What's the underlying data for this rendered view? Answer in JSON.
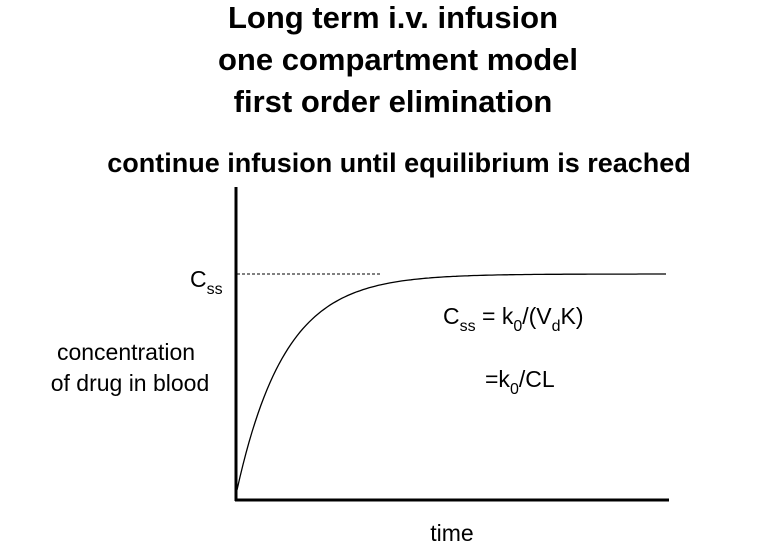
{
  "title": {
    "lines": [
      "Long term i.v. infusion",
      "one compartment model",
      "first order elimination"
    ]
  },
  "subtitle": "continue infusion until equilibrium is reached",
  "axes": {
    "y_label": [
      "concentration",
      "of drug in blood"
    ],
    "x_label": "time"
  },
  "steady_state_marker": [
    "C",
    "ss"
  ],
  "equations": [
    [
      "C",
      "ss",
      " = k",
      "0",
      "/(V",
      "d",
      "K)"
    ],
    [
      "=k",
      "0",
      "/CL"
    ]
  ]
}
